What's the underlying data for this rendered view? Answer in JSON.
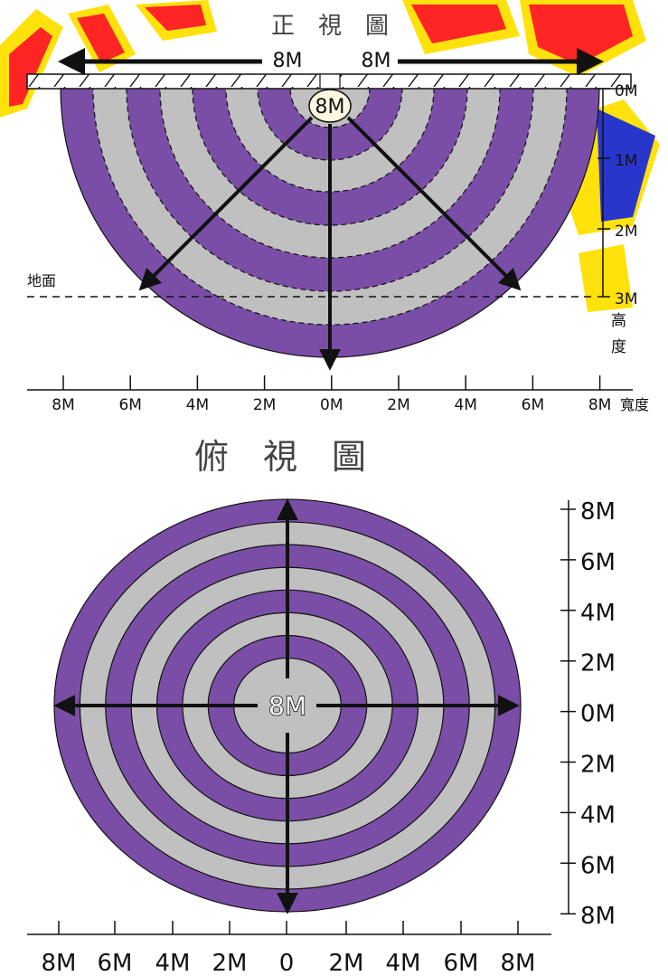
{
  "colors": {
    "ring_purple": "#7a4ea6",
    "ring_gray": "#c0c0c0",
    "watermark_red": "#ff1a1a",
    "watermark_yellow": "#ffe000",
    "watermark_blue": "#1e2cc9",
    "axis": "#111111"
  },
  "icons": {
    "sensor": "sensor-icon",
    "watermark": "watermark-logo"
  },
  "front_view": {
    "title": "正　視　圖",
    "span_left_label": "8M",
    "span_right_label": "8M",
    "sensor_label": "8M",
    "ground_label": "地面",
    "height_axis_title": "高度",
    "height_ticks": [
      "0M",
      "1M",
      "2M",
      "3M"
    ],
    "width_ticks": [
      "8M",
      "6M",
      "4M",
      "2M",
      "0M",
      "2M",
      "4M",
      "6M",
      "8M"
    ],
    "width_axis_title": "寬度"
  },
  "top_view": {
    "title": "俯　視　圖",
    "center_label": "8M",
    "vertical_ticks": [
      "8M",
      "6M",
      "4M",
      "2M",
      "0M",
      "2M",
      "4M",
      "6M",
      "8M"
    ],
    "horizontal_ticks": [
      "8M",
      "6M",
      "4M",
      "2M",
      "0",
      "2M",
      "4M",
      "6M",
      "8M"
    ]
  }
}
